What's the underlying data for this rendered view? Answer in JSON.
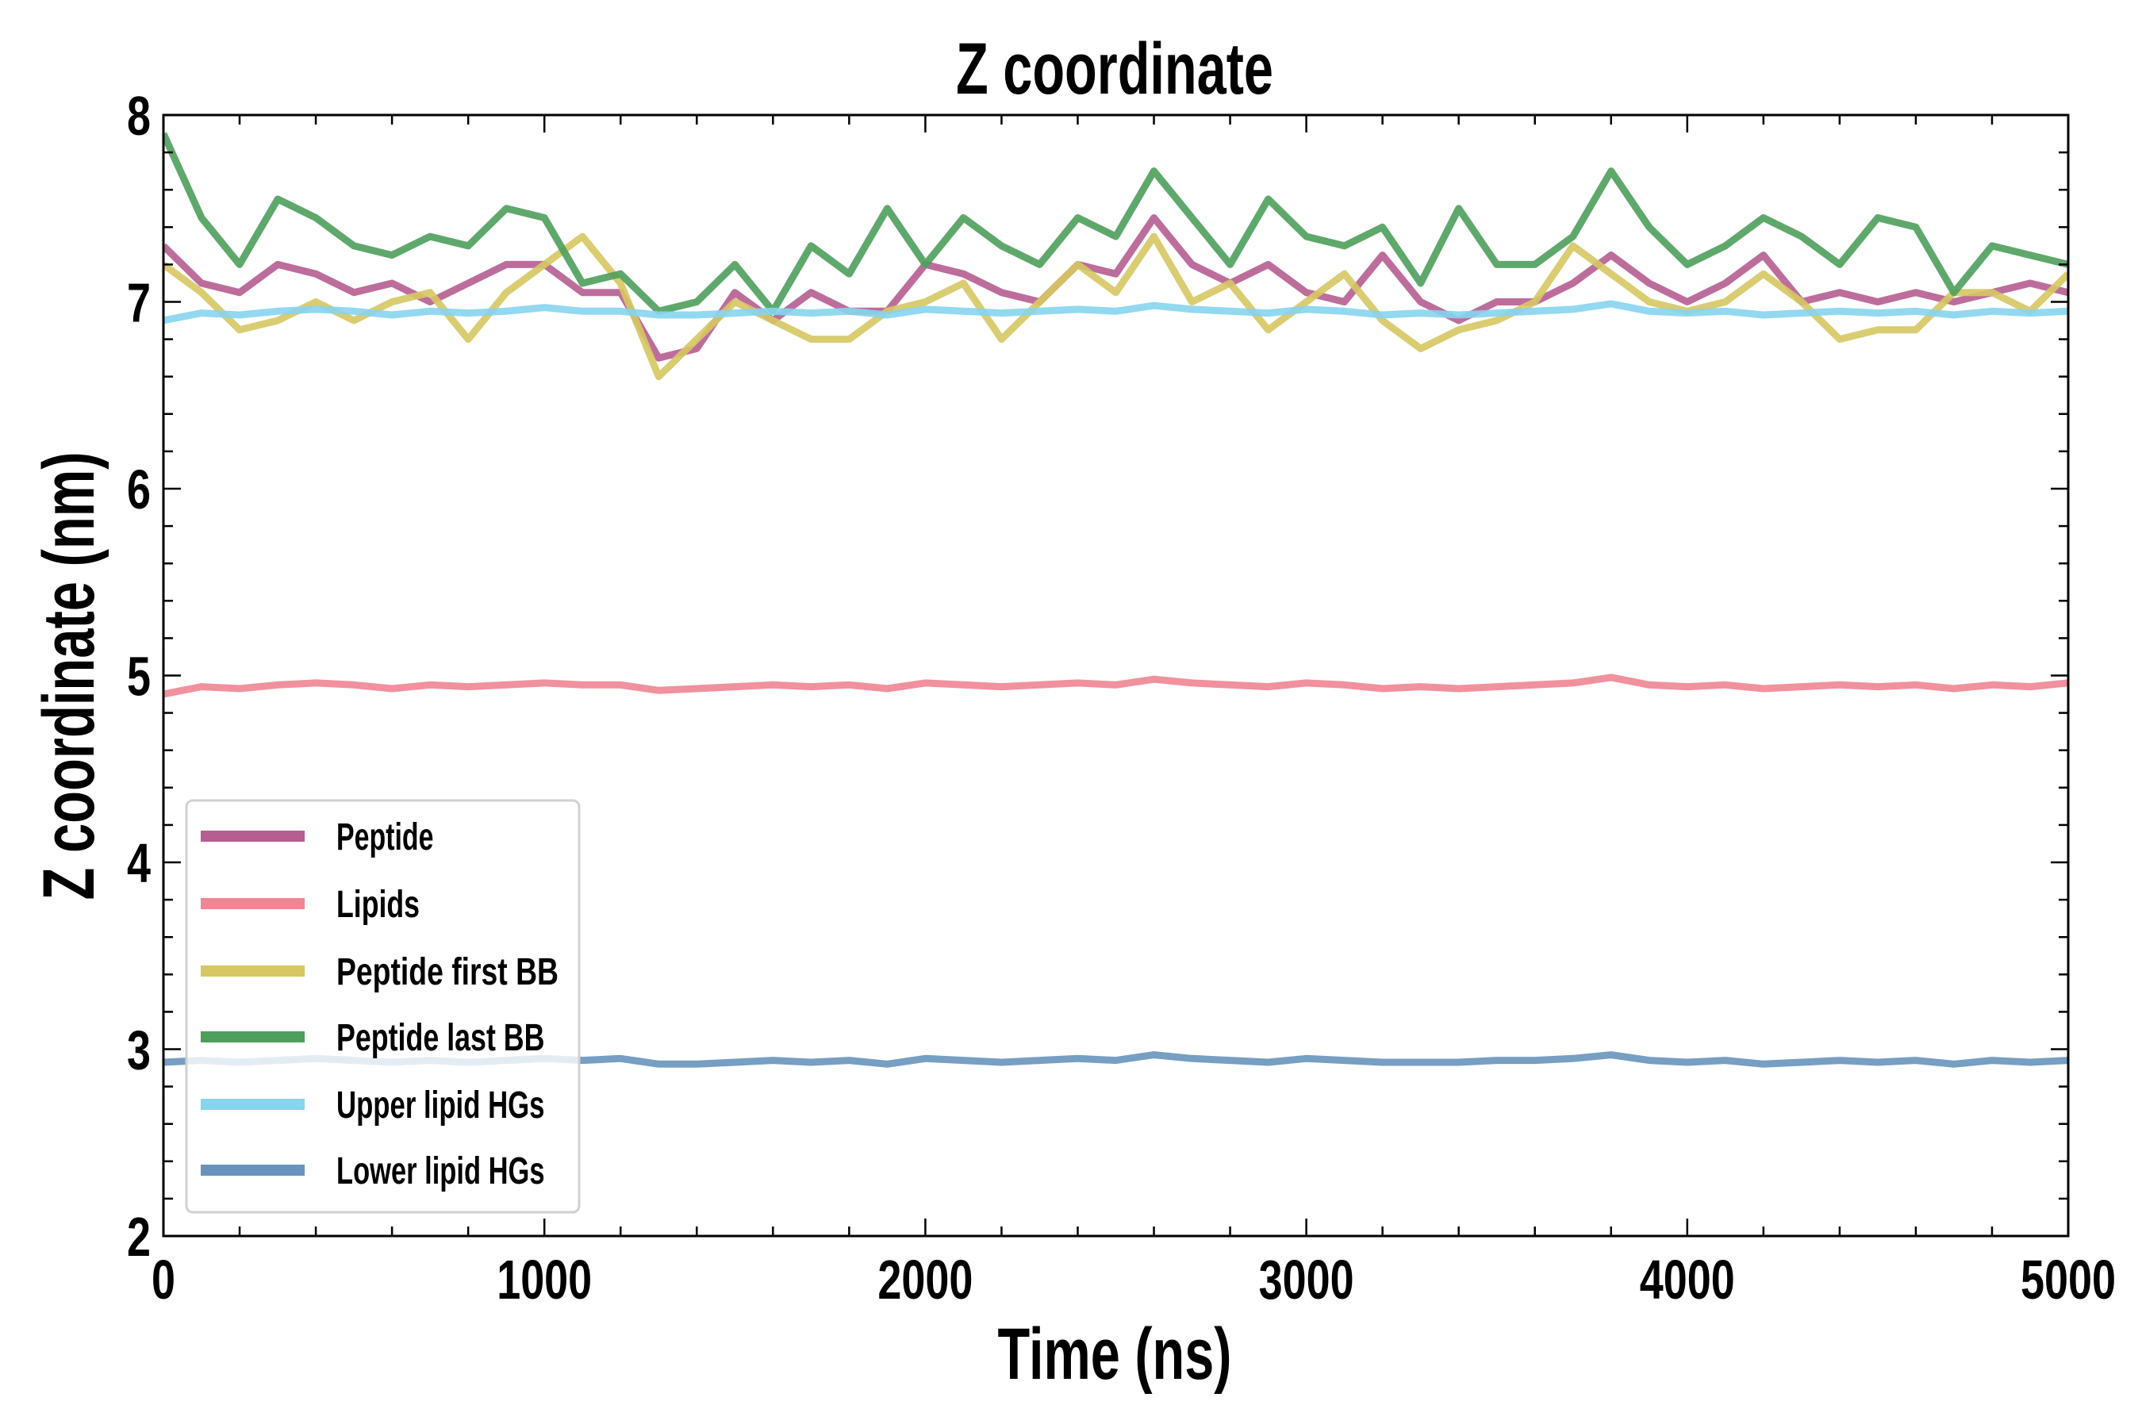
{
  "chart_data": {
    "type": "line",
    "title": "Z coordinate",
    "xlabel": "Time (ns)",
    "ylabel": "Z coordinate (nm)",
    "xlim": [
      0,
      5000
    ],
    "ylim": [
      2,
      8
    ],
    "xticks": [
      0,
      1000,
      2000,
      3000,
      4000,
      5000
    ],
    "yticks": [
      2,
      3,
      4,
      5,
      6,
      7,
      8
    ],
    "grid": false,
    "legend_position": "lower-left",
    "x": [
      0,
      100,
      200,
      300,
      400,
      500,
      600,
      700,
      800,
      900,
      1000,
      1100,
      1200,
      1300,
      1400,
      1500,
      1600,
      1700,
      1800,
      1900,
      2000,
      2100,
      2200,
      2300,
      2400,
      2500,
      2600,
      2700,
      2800,
      2900,
      3000,
      3100,
      3200,
      3300,
      3400,
      3500,
      3600,
      3700,
      3800,
      3900,
      4000,
      4100,
      4200,
      4300,
      4400,
      4500,
      4600,
      4700,
      4800,
      4900,
      5000
    ],
    "series": [
      {
        "name": "Peptide",
        "color": "#b65d91",
        "values": [
          7.3,
          7.1,
          7.05,
          7.2,
          7.15,
          7.05,
          7.1,
          7.0,
          7.1,
          7.2,
          7.2,
          7.05,
          7.05,
          6.7,
          6.75,
          7.05,
          6.9,
          7.05,
          6.95,
          6.95,
          7.2,
          7.15,
          7.05,
          7.0,
          7.2,
          7.15,
          7.45,
          7.2,
          7.1,
          7.2,
          7.05,
          7.0,
          7.25,
          7.0,
          6.9,
          7.0,
          7.0,
          7.1,
          7.25,
          7.1,
          7.0,
          7.1,
          7.25,
          7.0,
          7.05,
          7.0,
          7.05,
          7.0,
          7.05,
          7.1,
          7.05
        ]
      },
      {
        "name": "Lipids",
        "color": "#f08593",
        "values": [
          4.9,
          4.94,
          4.93,
          4.95,
          4.96,
          4.95,
          4.93,
          4.95,
          4.94,
          4.95,
          4.96,
          4.95,
          4.95,
          4.92,
          4.93,
          4.94,
          4.95,
          4.94,
          4.95,
          4.93,
          4.96,
          4.95,
          4.94,
          4.95,
          4.96,
          4.95,
          4.98,
          4.96,
          4.95,
          4.94,
          4.96,
          4.95,
          4.93,
          4.94,
          4.93,
          4.94,
          4.95,
          4.96,
          4.99,
          4.95,
          4.94,
          4.95,
          4.93,
          4.94,
          4.95,
          4.94,
          4.95,
          4.93,
          4.95,
          4.94,
          4.96
        ]
      },
      {
        "name": "Peptide first BB",
        "color": "#d6c762",
        "values": [
          7.2,
          7.05,
          6.85,
          6.9,
          7.0,
          6.9,
          7.0,
          7.05,
          6.8,
          7.05,
          7.2,
          7.35,
          7.1,
          6.6,
          6.8,
          7.0,
          6.9,
          6.8,
          6.8,
          6.95,
          7.0,
          7.1,
          6.8,
          7.0,
          7.2,
          7.05,
          7.35,
          7.0,
          7.1,
          6.85,
          7.0,
          7.15,
          6.9,
          6.75,
          6.85,
          6.9,
          7.0,
          7.3,
          7.15,
          7.0,
          6.95,
          7.0,
          7.15,
          7.0,
          6.8,
          6.85,
          6.85,
          7.05,
          7.05,
          6.95,
          7.15
        ]
      },
      {
        "name": "Peptide last BB",
        "color": "#4e9e5c",
        "values": [
          7.9,
          7.45,
          7.2,
          7.55,
          7.45,
          7.3,
          7.25,
          7.35,
          7.3,
          7.5,
          7.45,
          7.1,
          7.15,
          6.95,
          7.0,
          7.2,
          6.95,
          7.3,
          7.15,
          7.5,
          7.2,
          7.45,
          7.3,
          7.2,
          7.45,
          7.35,
          7.7,
          7.45,
          7.2,
          7.55,
          7.35,
          7.3,
          7.4,
          7.1,
          7.5,
          7.2,
          7.2,
          7.35,
          7.7,
          7.4,
          7.2,
          7.3,
          7.45,
          7.35,
          7.2,
          7.45,
          7.4,
          7.05,
          7.3,
          7.25,
          7.2
        ]
      },
      {
        "name": "Upper lipid HGs",
        "color": "#86d4ee",
        "values": [
          6.9,
          6.94,
          6.93,
          6.95,
          6.96,
          6.95,
          6.93,
          6.95,
          6.94,
          6.95,
          6.97,
          6.95,
          6.95,
          6.93,
          6.93,
          6.94,
          6.95,
          6.94,
          6.95,
          6.93,
          6.96,
          6.95,
          6.94,
          6.95,
          6.96,
          6.95,
          6.98,
          6.96,
          6.95,
          6.94,
          6.96,
          6.95,
          6.93,
          6.94,
          6.93,
          6.94,
          6.95,
          6.96,
          6.99,
          6.95,
          6.94,
          6.95,
          6.93,
          6.94,
          6.95,
          6.94,
          6.95,
          6.93,
          6.95,
          6.94,
          6.95
        ]
      },
      {
        "name": "Lower lipid HGs",
        "color": "#6893bd",
        "values": [
          2.93,
          2.94,
          2.93,
          2.94,
          2.95,
          2.94,
          2.93,
          2.94,
          2.93,
          2.94,
          2.95,
          2.94,
          2.95,
          2.92,
          2.92,
          2.93,
          2.94,
          2.93,
          2.94,
          2.92,
          2.95,
          2.94,
          2.93,
          2.94,
          2.95,
          2.94,
          2.97,
          2.95,
          2.94,
          2.93,
          2.95,
          2.94,
          2.93,
          2.93,
          2.93,
          2.94,
          2.94,
          2.95,
          2.97,
          2.94,
          2.93,
          2.94,
          2.92,
          2.93,
          2.94,
          2.93,
          2.94,
          2.92,
          2.94,
          2.93,
          2.94
        ]
      }
    ]
  }
}
